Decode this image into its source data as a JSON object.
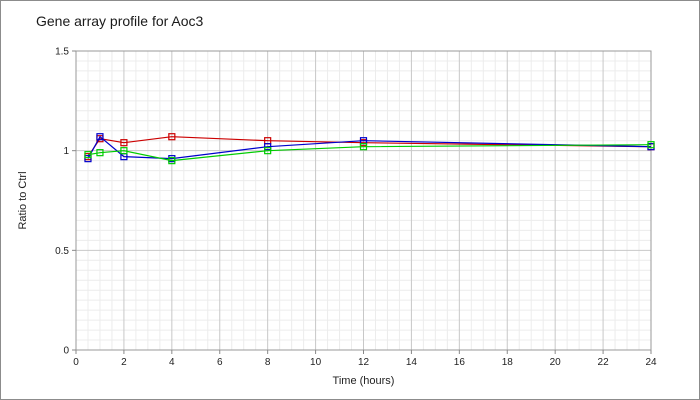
{
  "chart_data": {
    "type": "line",
    "title": "Gene array profile for Aoc3",
    "xlabel": "Time (hours)",
    "ylabel": "Ratio to Ctrl",
    "xlim": [
      0,
      24
    ],
    "ylim": [
      0,
      1.5
    ],
    "x_ticks": [
      "0",
      "2",
      "4",
      "6",
      "8",
      "10",
      "12",
      "14",
      "16",
      "18",
      "20",
      "22",
      "24"
    ],
    "y_ticks": [
      "0",
      "0.5",
      "1",
      "1.5"
    ],
    "grid": true,
    "legend": "none",
    "series": [
      {
        "color": "#cc0000",
        "marker": "square",
        "x": [
          0.5,
          1,
          2,
          4,
          8,
          12,
          24
        ],
        "values": [
          0.97,
          1.06,
          1.04,
          1.07,
          1.05,
          1.04,
          1.02
        ]
      },
      {
        "color": "#0000cc",
        "marker": "square",
        "x": [
          0.5,
          1,
          2,
          4,
          8,
          12,
          24
        ],
        "values": [
          0.96,
          1.07,
          0.97,
          0.96,
          1.02,
          1.05,
          1.02
        ]
      },
      {
        "color": "#00cc00",
        "marker": "square",
        "x": [
          0.5,
          1,
          2,
          4,
          8,
          12,
          24
        ],
        "values": [
          0.98,
          0.99,
          1.0,
          0.95,
          1.0,
          1.02,
          1.03
        ]
      }
    ]
  }
}
